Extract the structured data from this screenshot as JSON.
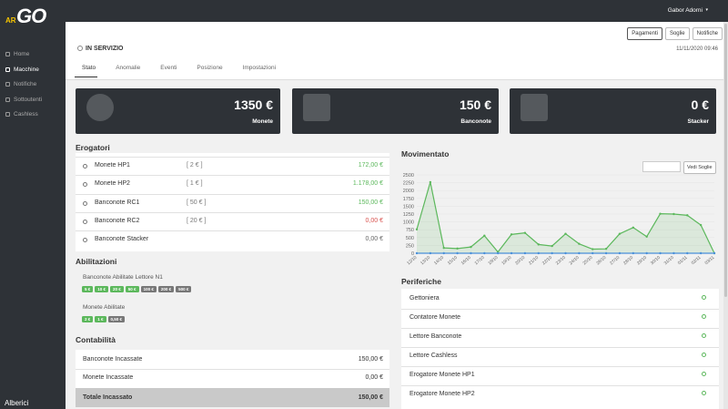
{
  "topbar": {
    "user": "Gabor Adorni"
  },
  "logo": {
    "prefix": "AR",
    "main": "GO"
  },
  "sidebar": {
    "items": [
      "Home",
      "Macchine",
      "Notifiche",
      "Sottoutenti",
      "Cashless"
    ],
    "active": 1,
    "footer": "Alberici"
  },
  "header": {
    "status": "IN SERVIZIO",
    "buttons": [
      "Pagamenti",
      "Soglie",
      "Notifiche"
    ],
    "datetime": "11/11/2020 09:46"
  },
  "tabs": {
    "items": [
      "Stato",
      "Anomalie",
      "Eventi",
      "Posizione",
      "Impostazioni"
    ],
    "active": 0
  },
  "cards": [
    {
      "value": "1350 €",
      "label": "Monete"
    },
    {
      "value": "150 €",
      "label": "Banconote"
    },
    {
      "value": "0 €",
      "label": "Stacker"
    }
  ],
  "erogatori": {
    "title": "Erogatori",
    "rows": [
      {
        "name": "Monete HP1",
        "denom": "[ 2 € ]",
        "amount": "172,00 €",
        "color": "#5cb85c"
      },
      {
        "name": "Monete HP2",
        "denom": "[ 1 € ]",
        "amount": "1.178,00 €",
        "color": "#5cb85c"
      },
      {
        "name": "Banconote RC1",
        "denom": "[ 50 € ]",
        "amount": "150,00 €",
        "color": "#5cb85c"
      },
      {
        "name": "Banconote RC2",
        "denom": "[ 20 € ]",
        "amount": "0,00 €",
        "color": "#d9534f"
      },
      {
        "name": "Banconote Stacker",
        "denom": null,
        "amount": "0,00 €",
        "color": "#666666"
      }
    ]
  },
  "abilitazioni": {
    "title": "Abilitazioni",
    "groups": [
      {
        "label": "Banconote Abilitate Lettore N1",
        "badges": [
          {
            "text": "5 €",
            "enabled": true
          },
          {
            "text": "10 €",
            "enabled": true
          },
          {
            "text": "20 €",
            "enabled": true
          },
          {
            "text": "50 €",
            "enabled": true
          },
          {
            "text": "100 €",
            "enabled": false
          },
          {
            "text": "200 €",
            "enabled": false
          },
          {
            "text": "500 €",
            "enabled": false
          }
        ]
      },
      {
        "label": "Monete Abilitate",
        "badges": [
          {
            "text": "2 €",
            "enabled": true
          },
          {
            "text": "1 €",
            "enabled": true
          },
          {
            "text": "0,50 €",
            "enabled": false
          }
        ]
      }
    ]
  },
  "contabilita": {
    "title": "Contabilità",
    "rows": [
      [
        "Banconote Incassate",
        "150,00 €"
      ],
      [
        "Monete Incassate",
        "0,00 €"
      ]
    ],
    "total": [
      "Totale Incassato",
      "150,00 €"
    ]
  },
  "chart_controls": {
    "button": "Vedi Soglie"
  },
  "chart_data": {
    "type": "line",
    "title": "Movimentato",
    "categories": [
      "12/10",
      "13/10",
      "14/10",
      "15/10",
      "16/10",
      "17/10",
      "18/10",
      "19/10",
      "20/10",
      "21/10",
      "22/10",
      "23/10",
      "24/10",
      "25/10",
      "26/10",
      "27/10",
      "28/10",
      "29/10",
      "30/10",
      "31/10",
      "01/11",
      "02/11",
      "03/11"
    ],
    "series": [
      {
        "color": "#5cb85c",
        "area": true,
        "values": [
          760,
          2270,
          170,
          150,
          200,
          560,
          40,
          600,
          650,
          280,
          230,
          620,
          300,
          130,
          140,
          620,
          820,
          530,
          1260,
          1250,
          1210,
          900,
          0
        ]
      },
      {
        "color": "#4a90d9",
        "area": false,
        "values": [
          0,
          0,
          0,
          0,
          0,
          0,
          0,
          0,
          0,
          0,
          0,
          0,
          0,
          0,
          0,
          0,
          0,
          0,
          0,
          0,
          0,
          0,
          0
        ]
      }
    ],
    "ylim": [
      0,
      2500
    ],
    "yticks": [
      0,
      250,
      500,
      750,
      1000,
      1250,
      1500,
      1750,
      2000,
      2250,
      2500
    ],
    "grid": true
  },
  "periferiche": {
    "title": "Periferiche",
    "items": [
      "Gettoniera",
      "Contatore Monete",
      "Lettore Banconote",
      "Lettore Cashless",
      "Erogatore Monete HP1",
      "Erogatore Monete HP2"
    ]
  }
}
